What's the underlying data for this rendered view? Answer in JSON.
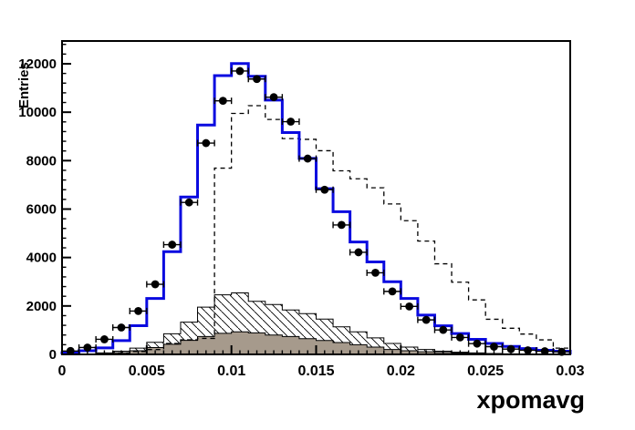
{
  "colors": {
    "solid_histogram": "#0a0ae0",
    "dashed_histogram": "#000000",
    "hatched_outline": "#000000",
    "gray_fill": "#a69a8c",
    "marker": "#000000",
    "frame": "#000000",
    "background": "#ffffff"
  },
  "chart_data": {
    "type": "histogram",
    "title": "",
    "xlabel": "xpomavg",
    "ylabel": "Entries",
    "xlim": [
      0,
      0.03
    ],
    "ylim": [
      0,
      12940
    ],
    "bin_width": 0.001,
    "grid": false,
    "legend": "none",
    "x_tick_values": [
      0,
      0.005,
      0.01,
      0.015,
      0.02,
      0.025,
      0.03
    ],
    "x_tick_labels": [
      "0",
      "0.005",
      "0.01",
      "0.015",
      "0.02",
      "0.025",
      "0.03"
    ],
    "x_minor_step": 0.0005,
    "y_tick_values": [
      0,
      2000,
      4000,
      6000,
      8000,
      10000,
      12000
    ],
    "y_tick_labels": [
      "0",
      "2000",
      "4000",
      "6000",
      "8000",
      "10000",
      "12000"
    ],
    "y_minor_step": 400,
    "series": [
      {
        "name": "hatched-mc-background",
        "style": "step-filled-hatch",
        "values": [
          0,
          20,
          60,
          130,
          260,
          500,
          850,
          1330,
          1950,
          2460,
          2540,
          2190,
          2060,
          1835,
          1685,
          1460,
          1140,
          930,
          680,
          450,
          300,
          200,
          130,
          90,
          60,
          40,
          25,
          15,
          0,
          0
        ]
      },
      {
        "name": "gray-mc-background",
        "style": "step-filled-solid",
        "values": [
          0,
          10,
          30,
          70,
          150,
          280,
          420,
          580,
          740,
          870,
          930,
          890,
          800,
          740,
          650,
          575,
          490,
          400,
          300,
          200,
          150,
          110,
          80,
          55,
          40,
          30,
          20,
          12,
          8,
          5
        ]
      },
      {
        "name": "dashed-mc-histogram",
        "style": "step-dashed",
        "values": [
          0,
          0,
          30,
          60,
          120,
          200,
          450,
          600,
          660,
          7690,
          9950,
          10270,
          9700,
          8910,
          8880,
          8410,
          7580,
          7250,
          6880,
          6210,
          5520,
          4680,
          3740,
          2980,
          2250,
          1450,
          1080,
          840,
          600,
          260
        ]
      },
      {
        "name": "solid-blue-mc-histogram",
        "style": "step-solid",
        "values": [
          70,
          150,
          270,
          570,
          1185,
          2310,
          4240,
          6500,
          9470,
          11510,
          12010,
          11480,
          10500,
          9160,
          8090,
          6840,
          5890,
          4640,
          3820,
          3000,
          2310,
          1620,
          1180,
          860,
          620,
          450,
          330,
          240,
          170,
          130
        ]
      },
      {
        "name": "data-points",
        "style": "points-with-errors",
        "x": [
          0.0005,
          0.0015,
          0.0025,
          0.0035,
          0.0045,
          0.0055,
          0.0065,
          0.0075,
          0.0085,
          0.0095,
          0.0105,
          0.0115,
          0.0125,
          0.0135,
          0.0145,
          0.0155,
          0.0165,
          0.0175,
          0.0185,
          0.0195,
          0.0205,
          0.0215,
          0.0225,
          0.0235,
          0.0245,
          0.0255,
          0.0265,
          0.0275,
          0.0285,
          0.0295
        ],
        "y": [
          140,
          283,
          622,
          1110,
          1790,
          2895,
          4530,
          6275,
          8725,
          10470,
          11700,
          11370,
          10620,
          9610,
          8085,
          6800,
          5345,
          4215,
          3370,
          2600,
          1980,
          1425,
          1010,
          700,
          445,
          320,
          220,
          170,
          130,
          105
        ],
        "xerr": 0.0005
      }
    ]
  }
}
